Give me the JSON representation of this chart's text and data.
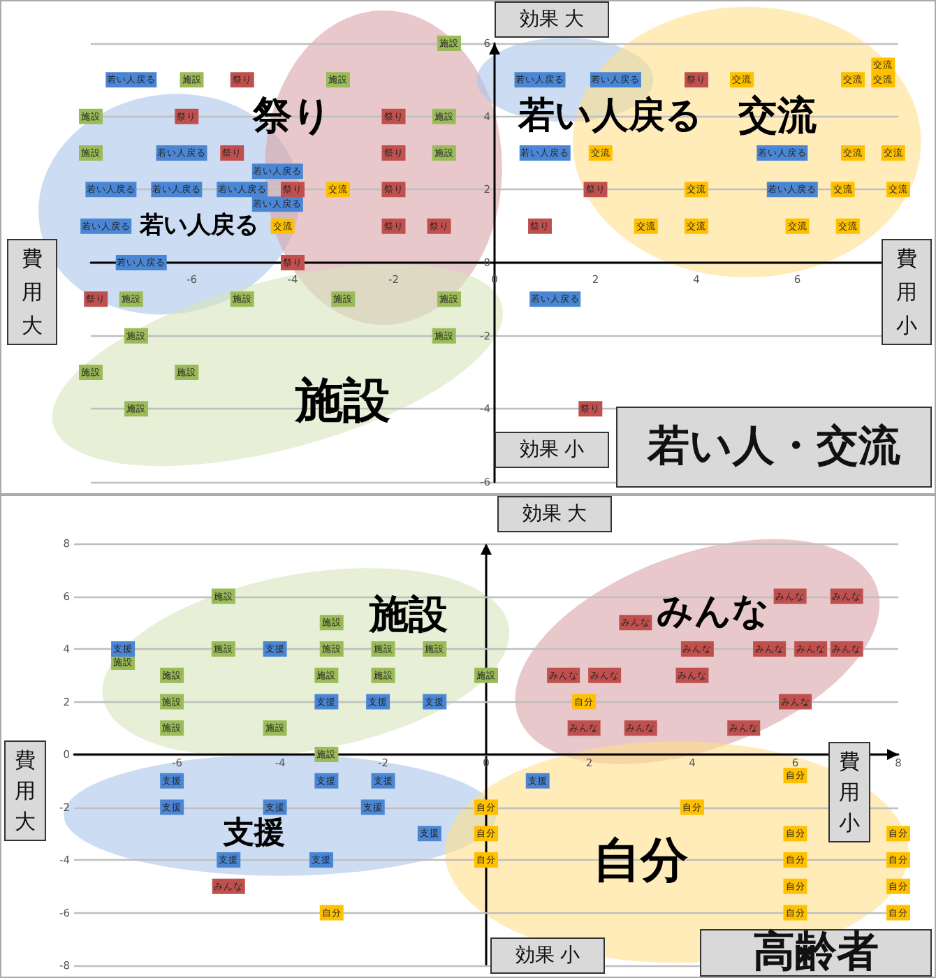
{
  "chart_data": [
    {
      "type": "scatter",
      "title": "若い人・交流",
      "xlim": [
        -8,
        8
      ],
      "ylim": [
        -6,
        6
      ],
      "xticks": [
        -6,
        -4,
        -2,
        0,
        2,
        4,
        6
      ],
      "yticks": [
        -6,
        -4,
        -2,
        0,
        2,
        4,
        6
      ],
      "grid": "y",
      "marker": "square",
      "annotations": [
        "効果 大",
        "効果 小",
        "費用大",
        "費用小",
        "若い人戻る",
        "若い人戻る",
        "祭り",
        "交流",
        "施設"
      ],
      "series": [
        {
          "name": "若い人戻る",
          "color": "#4a86d4",
          "x": [
            -7.2,
            -6.2,
            -4.3,
            -7.6,
            -6.3,
            -5,
            -4.3,
            -7.7,
            -7,
            0.9,
            2.4,
            1,
            5.7,
            5.9,
            1.2
          ],
          "values": [
            5,
            3,
            2.5,
            2,
            2,
            2,
            1.6,
            1,
            0,
            5,
            5,
            3,
            3,
            2,
            -1
          ]
        },
        {
          "name": "施設",
          "color": "#9bbb59",
          "x": [
            -0.9,
            -6,
            -3.1,
            -8,
            -1,
            -8,
            -1,
            -7.2,
            -5,
            -3,
            -0.9,
            -7.1,
            -1,
            -8,
            -6.1,
            -7.1
          ],
          "values": [
            6,
            5,
            5,
            4,
            4,
            3,
            3,
            -1,
            -1,
            -1,
            -1,
            -2,
            -2,
            -3,
            -3,
            -4
          ]
        },
        {
          "name": "祭り",
          "color": "#c0504d",
          "x": [
            -5,
            -6.1,
            -2,
            -5.2,
            -2,
            -4,
            -2,
            -2,
            -1.1,
            -4,
            -7.9,
            4,
            2,
            0.9,
            1.9
          ],
          "values": [
            5,
            4,
            4,
            3,
            3,
            2,
            2,
            1,
            1,
            0,
            -1,
            5,
            2,
            1,
            -4
          ]
        },
        {
          "name": "交流",
          "color": "#ffc000",
          "x": [
            -3.1,
            -4.2,
            4.9,
            7.1,
            7.7,
            7.7,
            2.1,
            7.1,
            7.9,
            4,
            6.9,
            8,
            3,
            4,
            6,
            7
          ],
          "values": [
            2,
            1,
            5,
            5,
            5,
            5.4,
            3,
            3,
            3,
            2,
            2,
            2,
            1,
            1,
            1,
            1
          ]
        }
      ]
    },
    {
      "type": "scatter",
      "title": "高齢者",
      "xlim": [
        -8,
        8
      ],
      "ylim": [
        -8,
        8
      ],
      "xticks": [
        -6,
        -4,
        -2,
        0,
        2,
        4,
        6,
        8
      ],
      "yticks": [
        -8,
        -6,
        -4,
        -2,
        0,
        2,
        4,
        6,
        8
      ],
      "grid": "y",
      "marker": "square",
      "annotations": [
        "効果 大",
        "効果 小",
        "費用大",
        "費用小",
        "施設",
        "みんな",
        "支援",
        "自分"
      ],
      "series": [
        {
          "name": "施設",
          "color": "#9bbb59",
          "x": [
            -5.1,
            -7.05,
            -5.1,
            -3,
            -3,
            -2,
            -1,
            -6.1,
            -3.1,
            -2,
            0,
            -6.1,
            -6.1,
            -4.1,
            -3.1
          ],
          "values": [
            6,
            3.5,
            4,
            5,
            4,
            4,
            4,
            3,
            3,
            3,
            3,
            2,
            1,
            1,
            0
          ]
        },
        {
          "name": "支援",
          "color": "#4a86d4",
          "x": [
            -7.05,
            -4.1,
            -3.1,
            -2.1,
            -1,
            -6.1,
            -3.1,
            -2,
            -6.1,
            -4.1,
            -2.2,
            -1.1,
            -5,
            -3.2,
            1
          ],
          "values": [
            4,
            4,
            2,
            2,
            2,
            -1,
            -1,
            -1,
            -2,
            -2,
            -2,
            -3,
            -4,
            -4,
            -1
          ]
        },
        {
          "name": "みんな",
          "color": "#c0504d",
          "x": [
            5.9,
            7,
            2.9,
            4.1,
            5.5,
            6.3,
            7,
            1.5,
            2.3,
            4,
            6,
            1.9,
            3,
            5,
            -5
          ],
          "values": [
            6,
            6,
            5,
            4,
            4,
            4,
            4,
            3,
            3,
            3,
            2,
            1,
            1,
            1,
            -5
          ]
        },
        {
          "name": "自分",
          "color": "#ffc000",
          "x": [
            1.9,
            -3,
            0,
            0,
            0,
            6,
            4,
            6,
            6,
            6,
            6,
            8,
            8,
            8,
            8
          ],
          "values": [
            2,
            -6,
            -2,
            -3,
            -4,
            -0.8,
            -2,
            -3,
            -4,
            -5,
            -6,
            -3,
            -4,
            -5,
            -6
          ]
        }
      ]
    }
  ]
}
